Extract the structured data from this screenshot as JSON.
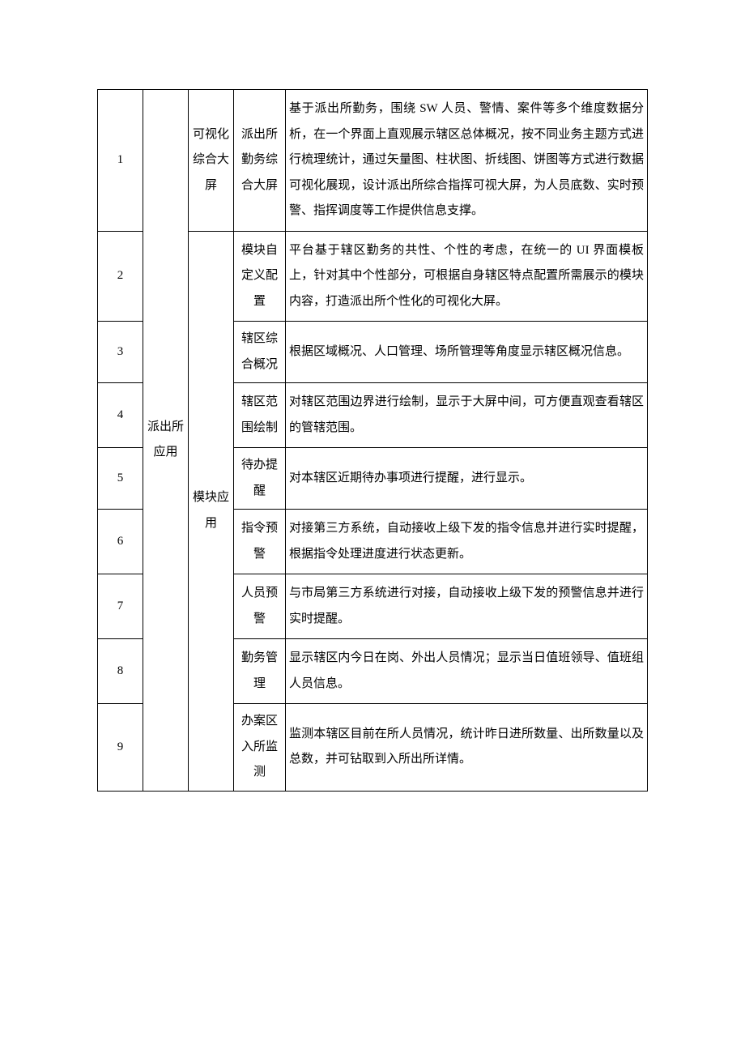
{
  "table": {
    "columns": {
      "index_width": 56,
      "app_width": 56,
      "module_width": 56,
      "name_width": 64
    },
    "app_label": "派出所应用",
    "module_labels": {
      "visual": "可视化综合大屏",
      "module_app": "模块应用"
    },
    "rows": [
      {
        "index": "1",
        "name": "派出所勤务综合大屏",
        "desc": "基于派出所勤务，围绕 SW 人员、警情、案件等多个维度数据分析，在一个界面上直观展示辖区总体概况，按不同业务主题方式进行梳理统计，通过矢量图、柱状图、折线图、饼图等方式进行数据可视化展现，设计派出所综合指挥可视大屏，为人员底数、实时预警、指挥调度等工作提供信息支撑。"
      },
      {
        "index": "2",
        "name": "模块自定义配置",
        "desc": "平台基于辖区勤务的共性、个性的考虑，在统一的 UI 界面模板上，针对其中个性部分，可根据自身辖区特点配置所需展示的模块内容，打造派出所个性化的可视化大屏。"
      },
      {
        "index": "3",
        "name": "辖区综合概况",
        "desc": "根据区域概况、人口管理、场所管理等角度显示辖区概况信息。"
      },
      {
        "index": "4",
        "name": "辖区范围绘制",
        "desc": "对辖区范围边界进行绘制，显示于大屏中间，可方便直观查看辖区的管辖范围。"
      },
      {
        "index": "5",
        "name": "待办提醒",
        "desc": "对本辖区近期待办事项进行提醒，进行显示。"
      },
      {
        "index": "6",
        "name": "指令预警",
        "desc": "对接第三方系统，自动接收上级下发的指令信息并进行实时提醒，根据指令处理进度进行状态更新。"
      },
      {
        "index": "7",
        "name": "人员预警",
        "desc": "与市局第三方系统进行对接，自动接收上级下发的预警信息并进行实时提醒。"
      },
      {
        "index": "8",
        "name": "勤务管理",
        "desc": "显示辖区内今日在岗、外出人员情况；显示当日值班领导、值班组人员信息。"
      },
      {
        "index": "9",
        "name": "办案区入所监测",
        "desc": "监测本辖区目前在所人员情况，统计昨日进所数量、出所数量以及总数，并可钻取到入所出所详情。"
      }
    ],
    "font_size": 15,
    "line_height": 2.1,
    "border_color": "#000000",
    "text_color": "#000000",
    "background_color": "#ffffff"
  }
}
